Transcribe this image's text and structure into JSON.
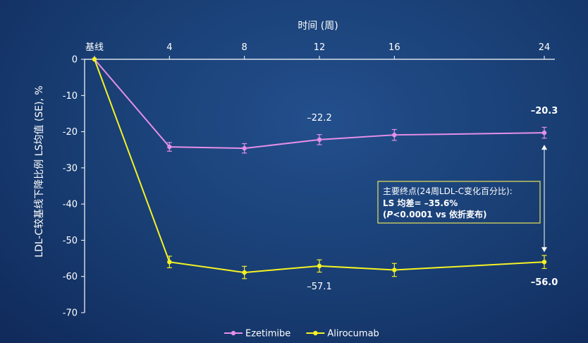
{
  "chart_data": {
    "type": "line",
    "xlabel": "时间 (周)",
    "ylabel": "LDL-C较基线下降比例 LS均值 (SE), %",
    "x": [
      0,
      4,
      8,
      12,
      16,
      24
    ],
    "x_tick_labels": [
      "基线",
      "4",
      "8",
      "12",
      "16",
      "24"
    ],
    "ylim": [
      -70,
      0
    ],
    "y_ticks": [
      0,
      -10,
      -20,
      -30,
      -40,
      -50,
      -60,
      -70
    ],
    "series": [
      {
        "name": "Ezetimibe",
        "color": "#e58fe8",
        "values": [
          0,
          -24.2,
          -24.6,
          -22.2,
          -20.9,
          -20.3
        ],
        "se": [
          0,
          1.2,
          1.3,
          1.4,
          1.5,
          1.5
        ]
      },
      {
        "name": "Alirocumab",
        "color": "#f5f224",
        "values": [
          0,
          -56.0,
          -58.9,
          -57.1,
          -58.2,
          -56.0
        ],
        "se": [
          0,
          1.6,
          1.7,
          1.7,
          1.8,
          1.8
        ]
      }
    ],
    "annotations": [
      {
        "text": "–22.2",
        "x": 12,
        "y": -22.2,
        "series": "Ezetimibe",
        "position": "above"
      },
      {
        "text": "–20.3",
        "x": 24,
        "y": -20.3,
        "series": "Ezetimibe",
        "position": "above"
      },
      {
        "text": "–57.1",
        "x": 12,
        "y": -57.1,
        "series": "Alirocumab",
        "position": "below"
      },
      {
        "text": "–56.0",
        "x": 24,
        "y": -56.0,
        "series": "Alirocumab",
        "position": "below"
      }
    ],
    "callout": {
      "line1": "主要终点(24周LDL-C变化百分比):",
      "line2": "LS 均差= –35.6%",
      "line3_italic": "P",
      "line3_rest": "<0.0001 vs 依折麦布)",
      "line3_open": "("
    },
    "grid": false,
    "legend_position": "bottom-center"
  },
  "colors": {
    "axis": "#ffffff",
    "callout_border": "#e8e35a"
  }
}
